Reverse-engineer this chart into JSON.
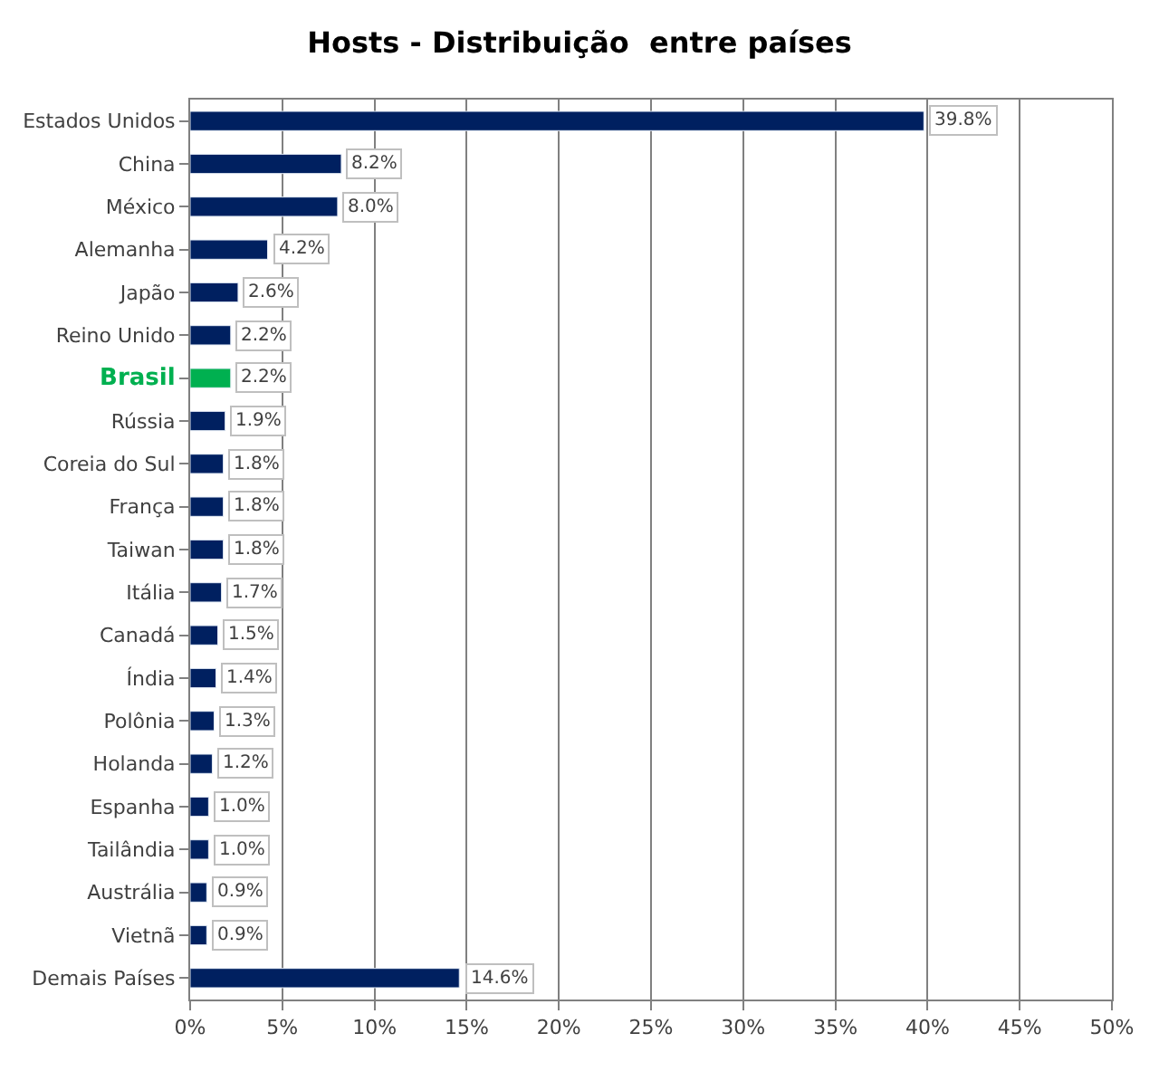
{
  "chart_data": {
    "type": "bar",
    "orientation": "horizontal",
    "title": "Hosts - Distribuição  entre países",
    "categories": [
      "Estados Unidos",
      "China",
      "México",
      "Alemanha",
      "Japão",
      "Reino Unido",
      "Brasil",
      "Rússia",
      "Coreia do Sul",
      "França",
      "Taiwan",
      "Itália",
      "Canadá",
      "Índia",
      "Polônia",
      "Holanda",
      "Espanha",
      "Tailândia",
      "Austrália",
      "Vietnã",
      "Demais Países"
    ],
    "values": [
      39.8,
      8.2,
      8.0,
      4.2,
      2.6,
      2.2,
      2.2,
      1.9,
      1.8,
      1.8,
      1.8,
      1.7,
      1.5,
      1.4,
      1.3,
      1.2,
      1.0,
      1.0,
      0.9,
      0.9,
      14.6
    ],
    "colors": [
      "#002060",
      "#002060",
      "#002060",
      "#002060",
      "#002060",
      "#002060",
      "#00b050",
      "#002060",
      "#002060",
      "#002060",
      "#002060",
      "#002060",
      "#002060",
      "#002060",
      "#002060",
      "#002060",
      "#002060",
      "#002060",
      "#002060",
      "#002060",
      "#002060"
    ],
    "value_labels": [
      "39.8%",
      "8.2%",
      "8.0%",
      "4.2%",
      "2.6%",
      "2.2%",
      "2.2%",
      "1.9%",
      "1.8%",
      "1.8%",
      "1.8%",
      "1.7%",
      "1.5%",
      "1.4%",
      "1.3%",
      "1.2%",
      "1.0%",
      "1.0%",
      "0.9%",
      "0.9%",
      "14.6%"
    ],
    "xlim": [
      0,
      50
    ],
    "xticks": [
      {
        "value": 0,
        "label": "0%"
      },
      {
        "value": 5,
        "label": "5%"
      },
      {
        "value": 10,
        "label": "10%"
      },
      {
        "value": 15,
        "label": "15%"
      },
      {
        "value": 20,
        "label": "20%"
      },
      {
        "value": 25,
        "label": "25%"
      },
      {
        "value": 30,
        "label": "30%"
      },
      {
        "value": 35,
        "label": "35%"
      },
      {
        "value": 40,
        "label": "40%"
      },
      {
        "value": 45,
        "label": "45%"
      },
      {
        "value": 50,
        "label": "50%"
      }
    ],
    "grid": "x"
  }
}
